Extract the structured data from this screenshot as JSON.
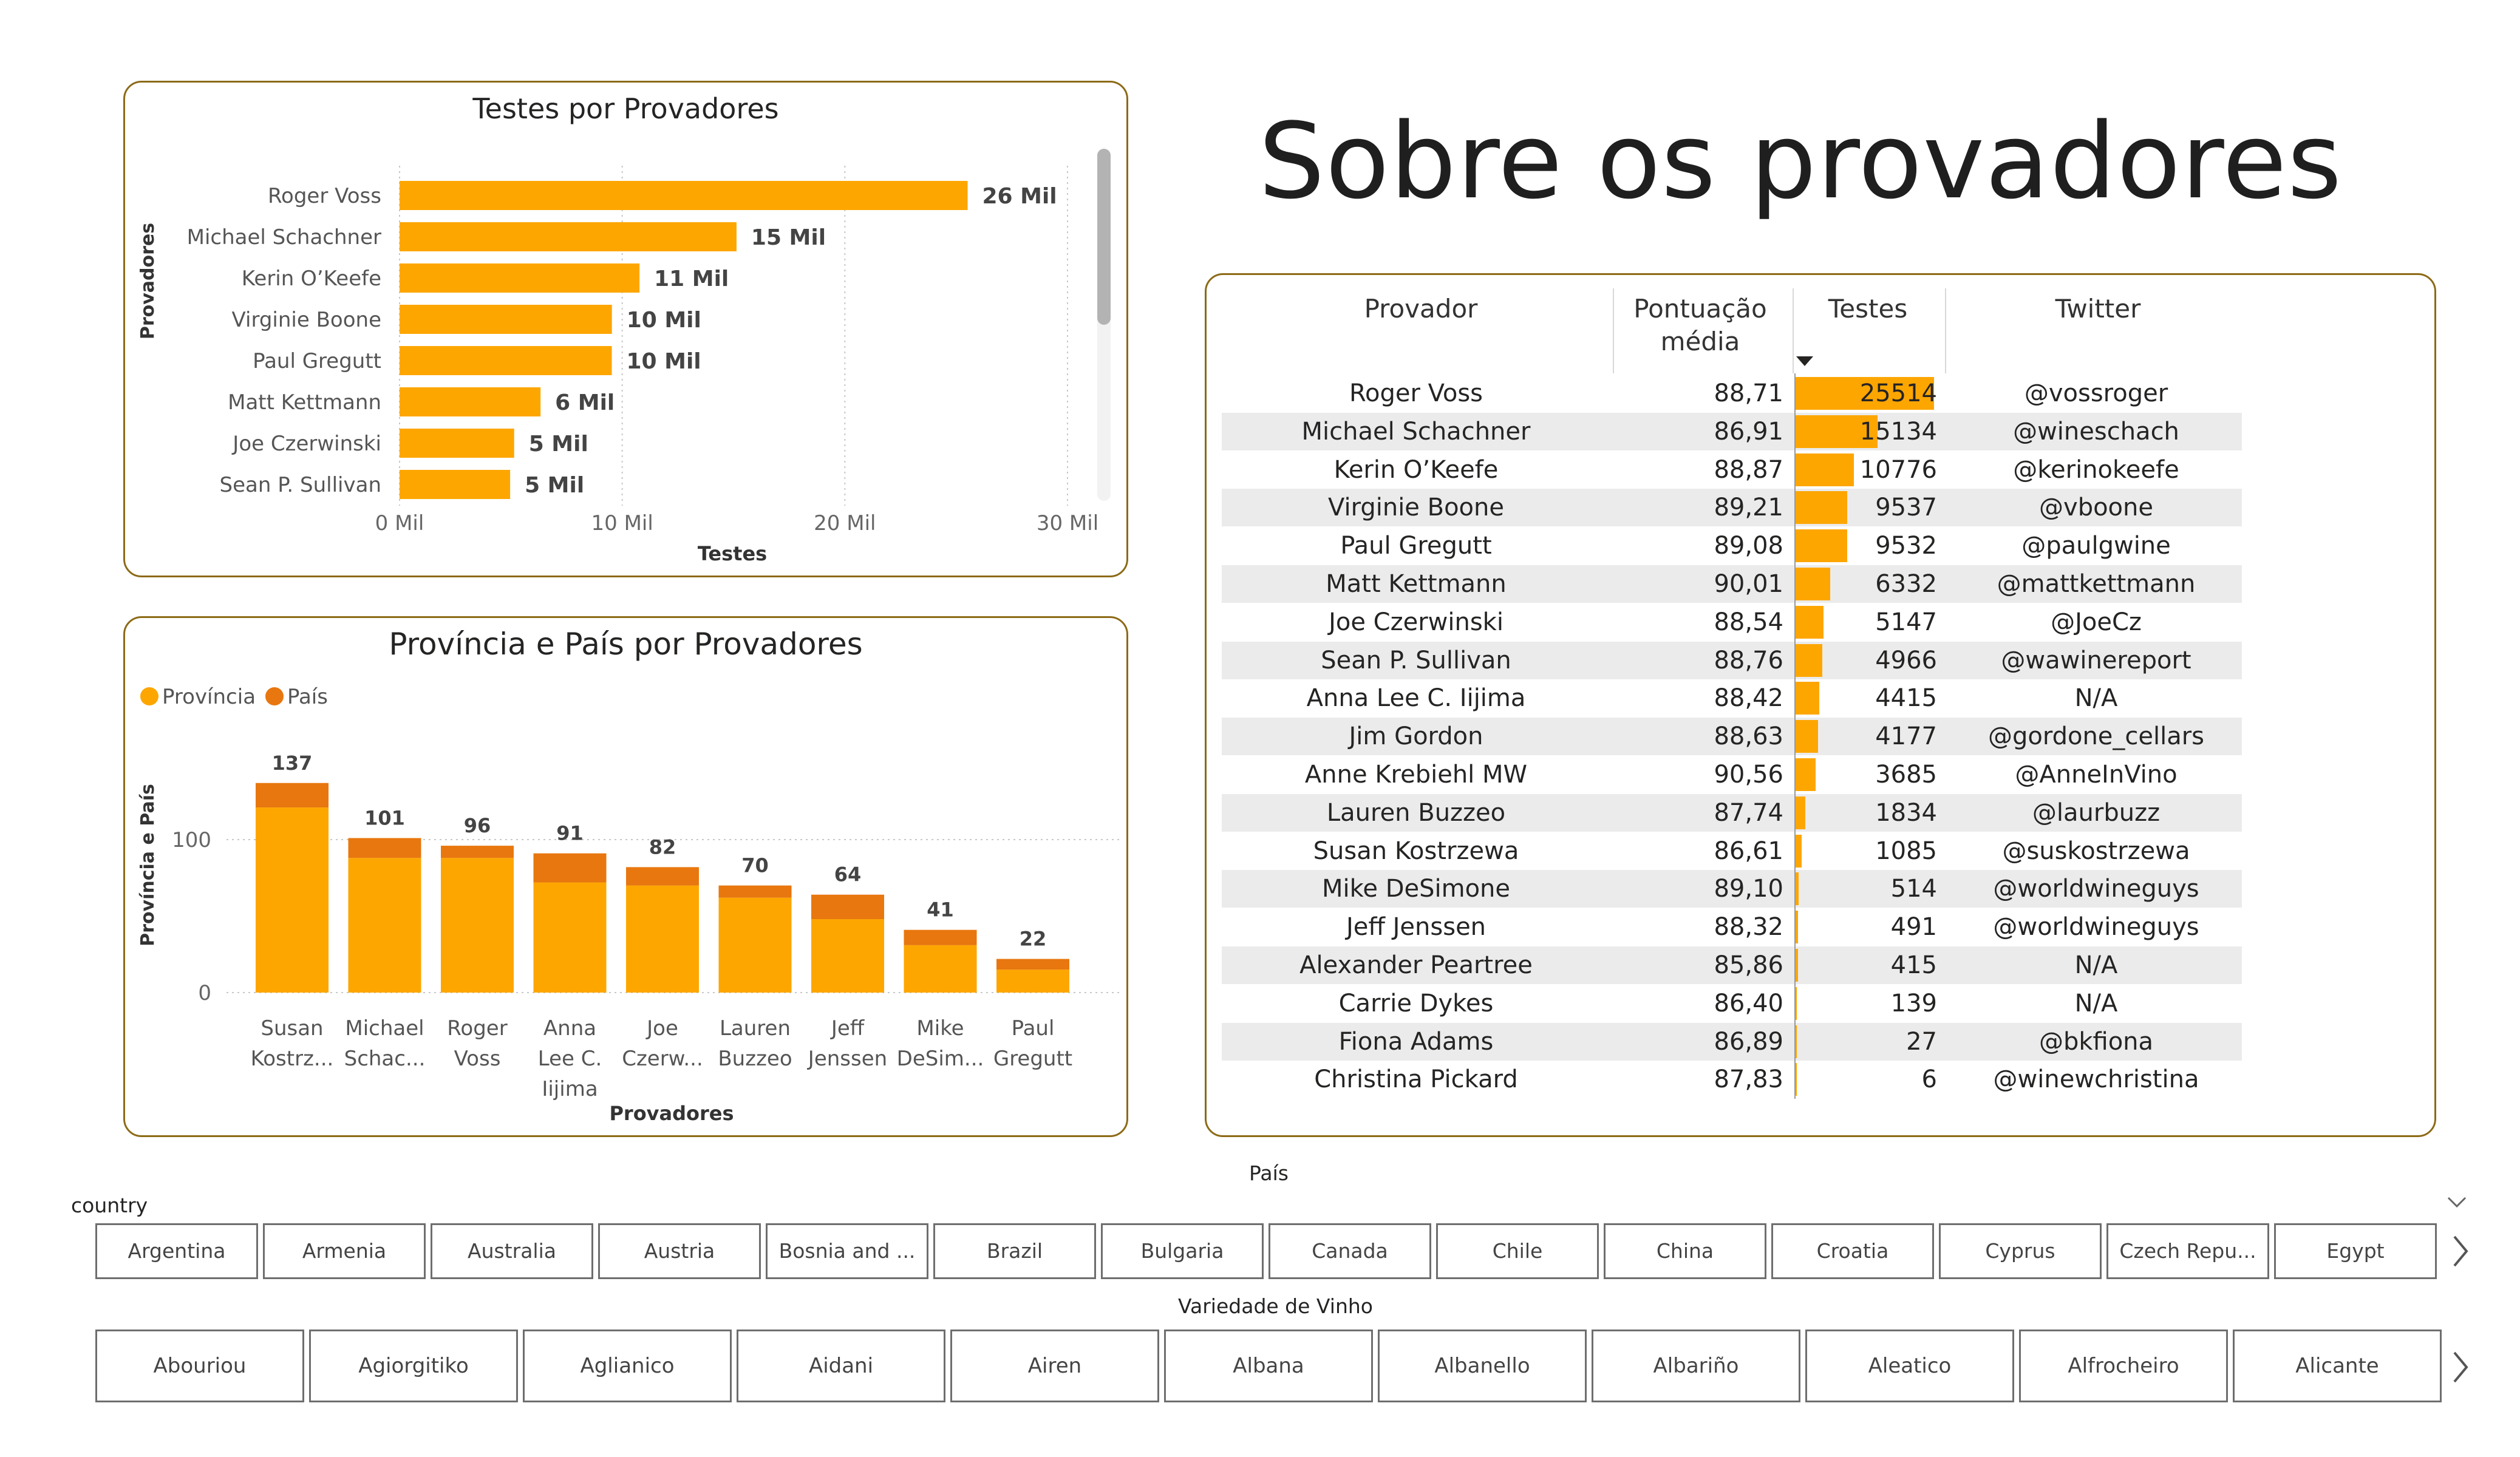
{
  "page": {
    "title": "Sobre os provadores"
  },
  "tasters_chart": {
    "title": "Testes por Provadores",
    "ylabel": "Provadores",
    "xlabel": "Testes",
    "ticks": [
      "0 Mil",
      "10 Mil",
      "20 Mil",
      "30 Mil"
    ]
  },
  "province_chart": {
    "title": "Província e País por Provadores",
    "legend": [
      {
        "label": "Província",
        "color": "#fda600"
      },
      {
        "label": "País",
        "color": "#e8770f"
      }
    ],
    "ylabel": "Província e País",
    "xlabel": "Provadores",
    "yticks": [
      "0",
      "100"
    ]
  },
  "chart_data": [
    {
      "type": "bar",
      "orientation": "horizontal",
      "title": "Testes por Provadores",
      "xlabel": "Testes",
      "ylabel": "Provadores",
      "categories": [
        "Roger Voss",
        "Michael Schachner",
        "Kerin O’Keefe",
        "Virginie Boone",
        "Paul Gregutt",
        "Matt Kettmann",
        "Joe Czerwinski",
        "Sean P. Sullivan"
      ],
      "values": [
        25514,
        15134,
        10776,
        9537,
        9532,
        6332,
        5147,
        4966
      ],
      "data_labels": [
        "26 Mil",
        "15 Mil",
        "11 Mil",
        "10 Mil",
        "10 Mil",
        "6 Mil",
        "5 Mil",
        "5 Mil"
      ],
      "xlim": [
        0,
        30000
      ],
      "color": "#fda600"
    },
    {
      "type": "bar",
      "stacked": true,
      "title": "Província e País por Provadores",
      "xlabel": "Provadores",
      "ylabel": "Província e País",
      "categories": [
        "Susan Kostrz...",
        "Michael Schac...",
        "Roger Voss",
        "Anna Lee C. Iijima",
        "Joe Czerw...",
        "Lauren Buzzeo",
        "Jeff Jenssen",
        "Mike DeSim...",
        "Paul Gregutt"
      ],
      "category_lines": [
        [
          "Susan",
          "Kostrz..."
        ],
        [
          "Michael",
          "Schac..."
        ],
        [
          "Roger",
          "Voss"
        ],
        [
          "Anna",
          "Lee C.",
          "Iijima"
        ],
        [
          "Joe",
          "Czerw..."
        ],
        [
          "Lauren",
          "Buzzeo"
        ],
        [
          "Jeff",
          "Jenssen"
        ],
        [
          "Mike",
          "DeSim..."
        ],
        [
          "Paul",
          "Gregutt"
        ]
      ],
      "series": [
        {
          "name": "Província",
          "color": "#fda600",
          "values": [
            121,
            88,
            88,
            72,
            70,
            62,
            48,
            31,
            15
          ]
        },
        {
          "name": "País",
          "color": "#e8770f",
          "values": [
            16,
            13,
            8,
            19,
            12,
            8,
            16,
            10,
            7
          ]
        }
      ],
      "totals": [
        137,
        101,
        96,
        91,
        82,
        70,
        64,
        41,
        22
      ],
      "ylim": [
        0,
        140
      ],
      "grid": true,
      "legend_position": "top-left"
    }
  ],
  "table": {
    "headers": {
      "name": "Provador",
      "score_line1": "Pontuação",
      "score_line2": "média",
      "tests": "Testes",
      "twitter": "Twitter"
    },
    "max_tests": 25514,
    "rows": [
      {
        "name": "Roger Voss",
        "score": "88,71",
        "tests": "25514",
        "tests_value": 25514,
        "twitter": "@vossroger"
      },
      {
        "name": "Michael Schachner",
        "score": "86,91",
        "tests": "15134",
        "tests_value": 15134,
        "twitter": "@wineschach"
      },
      {
        "name": "Kerin O’Keefe",
        "score": "88,87",
        "tests": "10776",
        "tests_value": 10776,
        "twitter": "@kerinokeefe"
      },
      {
        "name": "Virginie Boone",
        "score": "89,21",
        "tests": "9537",
        "tests_value": 9537,
        "twitter": "@vboone"
      },
      {
        "name": "Paul Gregutt",
        "score": "89,08",
        "tests": "9532",
        "tests_value": 9532,
        "twitter": "@paulgwine"
      },
      {
        "name": "Matt Kettmann",
        "score": "90,01",
        "tests": "6332",
        "tests_value": 6332,
        "twitter": "@mattkettmann"
      },
      {
        "name": "Joe Czerwinski",
        "score": "88,54",
        "tests": "5147",
        "tests_value": 5147,
        "twitter": "@JoeCz"
      },
      {
        "name": "Sean P. Sullivan",
        "score": "88,76",
        "tests": "4966",
        "tests_value": 4966,
        "twitter": "@wawinereport"
      },
      {
        "name": "Anna Lee C. Iijima",
        "score": "88,42",
        "tests": "4415",
        "tests_value": 4415,
        "twitter": "N/A"
      },
      {
        "name": "Jim Gordon",
        "score": "88,63",
        "tests": "4177",
        "tests_value": 4177,
        "twitter": "@gordone_cellars"
      },
      {
        "name": "Anne Krebiehl MW",
        "score": "90,56",
        "tests": "3685",
        "tests_value": 3685,
        "twitter": "@AnneInVino"
      },
      {
        "name": "Lauren Buzzeo",
        "score": "87,74",
        "tests": "1834",
        "tests_value": 1834,
        "twitter": "@laurbuzz"
      },
      {
        "name": "Susan Kostrzewa",
        "score": "86,61",
        "tests": "1085",
        "tests_value": 1085,
        "twitter": "@suskostrzewa"
      },
      {
        "name": "Mike DeSimone",
        "score": "89,10",
        "tests": "514",
        "tests_value": 514,
        "twitter": "@worldwineguys"
      },
      {
        "name": "Jeff Jenssen",
        "score": "88,32",
        "tests": "491",
        "tests_value": 491,
        "twitter": "@worldwineguys"
      },
      {
        "name": "Alexander Peartree",
        "score": "85,86",
        "tests": "415",
        "tests_value": 415,
        "twitter": "N/A"
      },
      {
        "name": "Carrie Dykes",
        "score": "86,40",
        "tests": "139",
        "tests_value": 139,
        "twitter": "N/A"
      },
      {
        "name": "Fiona Adams",
        "score": "86,89",
        "tests": "27",
        "tests_value": 27,
        "twitter": "@bkfiona"
      },
      {
        "name": "Christina Pickard",
        "score": "87,83",
        "tests": "6",
        "tests_value": 6,
        "twitter": "@winewchristina"
      }
    ]
  },
  "country_slicer": {
    "header": "País",
    "title": "country",
    "items": [
      "Argentina",
      "Armenia",
      "Australia",
      "Austria",
      "Bosnia and ...",
      "Brazil",
      "Bulgaria",
      "Canada",
      "Chile",
      "China",
      "Croatia",
      "Cyprus",
      "Czech Repu...",
      "Egypt"
    ]
  },
  "variety_slicer": {
    "title": "Variedade de Vinho",
    "items": [
      "Abouriou",
      "Agiorgitiko",
      "Aglianico",
      "Aidani",
      "Airen",
      "Albana",
      "Albanello",
      "Albariño",
      "Aleatico",
      "Alfrocheiro",
      "Alicante"
    ]
  },
  "icons": {
    "next": "chevron-right-icon",
    "expand": "chevron-down-icon",
    "sort": "sort-descending-icon"
  }
}
